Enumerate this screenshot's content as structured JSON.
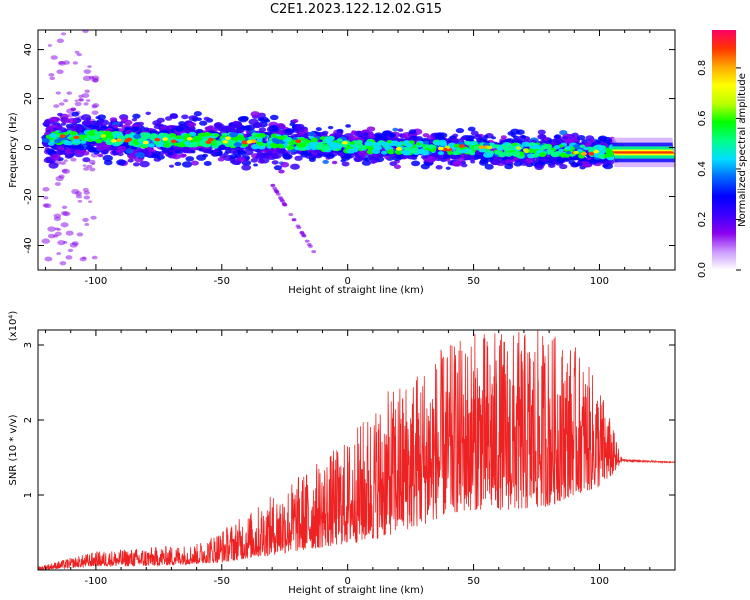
{
  "title": "C2E1.2023.122.12.02.G15",
  "chart_data": [
    {
      "type": "heatmap",
      "xlabel": "Height of straight line (km)",
      "ylabel": "Frequency (Hz)",
      "xlim": [
        -123,
        130
      ],
      "ylim": [
        -50,
        48
      ],
      "xticks": [
        -100,
        -50,
        0,
        50,
        100
      ],
      "yticks": [
        -40,
        -20,
        0,
        20,
        40
      ],
      "ridge": {
        "x": [
          -120,
          -100,
          -80,
          -60,
          -40,
          -20,
          0,
          20,
          40,
          60,
          80,
          100,
          110,
          130
        ],
        "y": [
          4,
          4,
          3,
          3,
          3,
          2,
          1,
          0,
          0,
          -1,
          -1,
          -2,
          -2,
          -2
        ]
      },
      "colorbar": {
        "label": "Normalized spectral amplitude",
        "range": [
          0,
          0.95
        ],
        "ticks": [
          0.0,
          0.2,
          0.4,
          0.6,
          0.8
        ],
        "colors": [
          "#ffffff",
          "#cc99ff",
          "#8800ee",
          "#3a00ff",
          "#0000ff",
          "#0066ff",
          "#00ddff",
          "#00ff88",
          "#00ff00",
          "#bbff00",
          "#ffff00",
          "#ffaa00",
          "#ff3300",
          "#ff0066"
        ]
      }
    },
    {
      "type": "line",
      "xlabel": "Height of straight line (km)",
      "ylabel": "SNR (10 * v/v)",
      "y_multiplier": "(x10⁴)",
      "xlim": [
        -123,
        130
      ],
      "ylim": [
        0,
        3.2
      ],
      "xticks": [
        -100,
        -50,
        0,
        50,
        100
      ],
      "yticks": [
        1,
        2,
        3
      ],
      "color": "#ee2222",
      "envelope": {
        "x": [
          -123,
          -100,
          -80,
          -60,
          -50,
          -40,
          -30,
          -20,
          -10,
          0,
          10,
          20,
          30,
          40,
          50,
          60,
          70,
          80,
          90,
          100,
          108,
          110,
          130
        ],
        "lower": [
          0.0,
          0.05,
          0.05,
          0.08,
          0.1,
          0.15,
          0.2,
          0.25,
          0.3,
          0.35,
          0.4,
          0.5,
          0.6,
          0.75,
          0.8,
          0.8,
          0.8,
          0.85,
          1.0,
          1.1,
          1.35,
          1.42,
          1.42
        ],
        "upper": [
          0.05,
          0.25,
          0.3,
          0.35,
          0.55,
          0.75,
          1.0,
          1.25,
          1.5,
          1.75,
          2.2,
          2.5,
          2.8,
          3.0,
          3.2,
          3.2,
          3.2,
          3.2,
          3.0,
          2.5,
          1.6,
          1.5,
          1.45
        ]
      }
    }
  ]
}
